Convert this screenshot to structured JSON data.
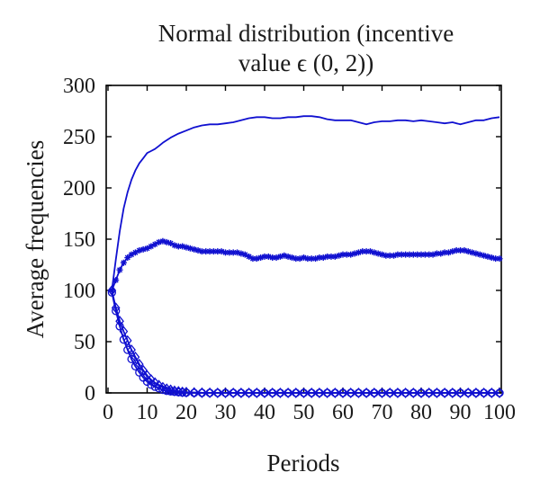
{
  "chart_data": {
    "type": "line",
    "title_line1": "Normal distribution (incentive",
    "title_line2": "value ϵ (0, 2))",
    "xlabel": "Periods",
    "ylabel": "Average frequencies",
    "xlim": [
      0,
      100
    ],
    "ylim": [
      0,
      300
    ],
    "xticks": [
      0,
      10,
      20,
      30,
      40,
      50,
      60,
      70,
      80,
      90,
      100
    ],
    "yticks": [
      0,
      50,
      100,
      150,
      200,
      250,
      300
    ],
    "grid": false,
    "legend": "none",
    "color": "#1010d0",
    "series": [
      {
        "marker": "none",
        "points": [
          [
            1,
            100
          ],
          [
            2,
            130
          ],
          [
            3,
            158
          ],
          [
            4,
            180
          ],
          [
            5,
            196
          ],
          [
            6,
            208
          ],
          [
            7,
            217
          ],
          [
            8,
            224
          ],
          [
            9,
            229
          ],
          [
            10,
            234
          ],
          [
            11,
            236
          ],
          [
            12,
            238
          ],
          [
            13,
            241
          ],
          [
            14,
            244
          ],
          [
            16,
            249
          ],
          [
            18,
            253
          ],
          [
            20,
            256
          ],
          [
            22,
            259
          ],
          [
            24,
            261
          ],
          [
            26,
            262
          ],
          [
            28,
            262
          ],
          [
            30,
            263
          ],
          [
            32,
            264
          ],
          [
            34,
            266
          ],
          [
            36,
            268
          ],
          [
            38,
            269
          ],
          [
            40,
            269
          ],
          [
            42,
            268
          ],
          [
            44,
            268
          ],
          [
            46,
            269
          ],
          [
            48,
            269
          ],
          [
            50,
            270
          ],
          [
            52,
            270
          ],
          [
            54,
            269
          ],
          [
            56,
            267
          ],
          [
            58,
            266
          ],
          [
            60,
            266
          ],
          [
            62,
            266
          ],
          [
            64,
            264
          ],
          [
            66,
            262
          ],
          [
            68,
            264
          ],
          [
            70,
            265
          ],
          [
            72,
            265
          ],
          [
            74,
            266
          ],
          [
            76,
            266
          ],
          [
            78,
            265
          ],
          [
            80,
            266
          ],
          [
            82,
            265
          ],
          [
            84,
            264
          ],
          [
            86,
            263
          ],
          [
            88,
            264
          ],
          [
            90,
            262
          ],
          [
            92,
            264
          ],
          [
            94,
            266
          ],
          [
            96,
            266
          ],
          [
            98,
            268
          ],
          [
            100,
            269
          ]
        ]
      },
      {
        "marker": "star",
        "points": [
          [
            1,
            100
          ],
          [
            2,
            110
          ],
          [
            3,
            120
          ],
          [
            4,
            127
          ],
          [
            5,
            132
          ],
          [
            6,
            135
          ],
          [
            7,
            137
          ],
          [
            8,
            139
          ],
          [
            9,
            140
          ],
          [
            10,
            141
          ],
          [
            11,
            143
          ],
          [
            12,
            145
          ],
          [
            13,
            147
          ],
          [
            14,
            148
          ],
          [
            15,
            147
          ],
          [
            16,
            146
          ],
          [
            17,
            144
          ],
          [
            18,
            143
          ],
          [
            19,
            143
          ],
          [
            20,
            142
          ],
          [
            21,
            141
          ],
          [
            22,
            140
          ],
          [
            23,
            139
          ],
          [
            24,
            138
          ],
          [
            25,
            138
          ],
          [
            26,
            138
          ],
          [
            27,
            138
          ],
          [
            28,
            138
          ],
          [
            29,
            138
          ],
          [
            30,
            137
          ],
          [
            31,
            137
          ],
          [
            32,
            137
          ],
          [
            33,
            137
          ],
          [
            34,
            136
          ],
          [
            35,
            135
          ],
          [
            36,
            133
          ],
          [
            37,
            131
          ],
          [
            38,
            131
          ],
          [
            39,
            132
          ],
          [
            40,
            133
          ],
          [
            41,
            133
          ],
          [
            42,
            132
          ],
          [
            43,
            132
          ],
          [
            44,
            133
          ],
          [
            45,
            134
          ],
          [
            46,
            133
          ],
          [
            47,
            132
          ],
          [
            48,
            131
          ],
          [
            49,
            131
          ],
          [
            50,
            132
          ],
          [
            51,
            131
          ],
          [
            52,
            131
          ],
          [
            53,
            131
          ],
          [
            54,
            132
          ],
          [
            55,
            132
          ],
          [
            56,
            133
          ],
          [
            57,
            133
          ],
          [
            58,
            133
          ],
          [
            59,
            134
          ],
          [
            60,
            135
          ],
          [
            61,
            135
          ],
          [
            62,
            135
          ],
          [
            63,
            136
          ],
          [
            64,
            137
          ],
          [
            65,
            138
          ],
          [
            66,
            138
          ],
          [
            67,
            138
          ],
          [
            68,
            137
          ],
          [
            69,
            136
          ],
          [
            70,
            135
          ],
          [
            71,
            134
          ],
          [
            72,
            134
          ],
          [
            73,
            134
          ],
          [
            74,
            135
          ],
          [
            75,
            135
          ],
          [
            76,
            135
          ],
          [
            77,
            135
          ],
          [
            78,
            135
          ],
          [
            79,
            135
          ],
          [
            80,
            135
          ],
          [
            81,
            135
          ],
          [
            82,
            135
          ],
          [
            83,
            135
          ],
          [
            84,
            136
          ],
          [
            85,
            136
          ],
          [
            86,
            137
          ],
          [
            87,
            137
          ],
          [
            88,
            138
          ],
          [
            89,
            139
          ],
          [
            90,
            139
          ],
          [
            91,
            139
          ],
          [
            92,
            138
          ],
          [
            93,
            137
          ],
          [
            94,
            136
          ],
          [
            95,
            135
          ],
          [
            96,
            134
          ],
          [
            97,
            133
          ],
          [
            98,
            132
          ],
          [
            99,
            131
          ],
          [
            100,
            131
          ]
        ]
      },
      {
        "marker": "diamond",
        "points": [
          [
            1,
            100
          ],
          [
            2,
            83
          ],
          [
            3,
            70
          ],
          [
            4,
            60
          ],
          [
            5,
            51
          ],
          [
            6,
            42
          ],
          [
            7,
            35
          ],
          [
            8,
            28
          ],
          [
            9,
            22
          ],
          [
            10,
            17
          ],
          [
            11,
            13
          ],
          [
            12,
            10
          ],
          [
            13,
            7.5
          ],
          [
            14,
            5.5
          ],
          [
            15,
            4
          ],
          [
            16,
            3
          ],
          [
            17,
            2
          ],
          [
            18,
            1.5
          ],
          [
            19,
            1
          ],
          [
            20,
            0.7
          ],
          [
            22,
            0.4
          ],
          [
            24,
            0.2
          ],
          [
            26,
            0.1
          ],
          [
            28,
            0
          ],
          [
            30,
            0
          ],
          [
            32,
            0
          ],
          [
            34,
            0
          ],
          [
            36,
            0
          ],
          [
            38,
            0
          ],
          [
            40,
            0
          ],
          [
            42,
            0
          ],
          [
            44,
            0
          ],
          [
            46,
            0
          ],
          [
            48,
            0
          ],
          [
            50,
            0
          ],
          [
            52,
            0
          ],
          [
            54,
            0
          ],
          [
            56,
            0
          ],
          [
            58,
            0
          ],
          [
            60,
            0
          ],
          [
            62,
            0
          ],
          [
            64,
            0
          ],
          [
            66,
            0
          ],
          [
            68,
            0
          ],
          [
            70,
            0
          ],
          [
            72,
            0
          ],
          [
            74,
            0
          ],
          [
            76,
            0
          ],
          [
            78,
            0
          ],
          [
            80,
            0
          ],
          [
            82,
            0
          ],
          [
            84,
            0
          ],
          [
            86,
            0
          ],
          [
            88,
            0
          ],
          [
            90,
            0
          ],
          [
            92,
            0
          ],
          [
            94,
            0
          ],
          [
            96,
            0
          ],
          [
            98,
            0
          ],
          [
            100,
            0
          ]
        ]
      },
      {
        "marker": "circle",
        "points": [
          [
            1,
            98
          ],
          [
            2,
            80
          ],
          [
            3,
            65
          ],
          [
            4,
            52
          ],
          [
            5,
            42
          ],
          [
            6,
            33
          ],
          [
            7,
            26
          ],
          [
            8,
            20
          ],
          [
            9,
            15
          ],
          [
            10,
            11
          ],
          [
            11,
            8
          ],
          [
            12,
            6
          ],
          [
            13,
            4.5
          ],
          [
            14,
            3
          ],
          [
            15,
            2
          ],
          [
            16,
            1.5
          ],
          [
            17,
            1
          ],
          [
            18,
            0.7
          ],
          [
            19,
            0.4
          ],
          [
            20,
            0.2
          ],
          [
            22,
            0
          ],
          [
            24,
            0
          ],
          [
            26,
            0
          ],
          [
            28,
            0
          ],
          [
            30,
            0
          ],
          [
            32,
            0
          ],
          [
            34,
            0
          ],
          [
            36,
            0
          ],
          [
            38,
            0
          ],
          [
            40,
            0
          ],
          [
            42,
            0
          ],
          [
            44,
            0
          ],
          [
            46,
            0
          ],
          [
            48,
            0
          ],
          [
            50,
            0
          ],
          [
            52,
            0
          ],
          [
            54,
            0
          ],
          [
            56,
            0
          ],
          [
            58,
            0
          ],
          [
            60,
            0
          ],
          [
            62,
            0
          ],
          [
            64,
            0
          ],
          [
            66,
            0
          ],
          [
            68,
            0
          ],
          [
            70,
            0
          ],
          [
            72,
            0
          ],
          [
            74,
            0
          ],
          [
            76,
            0
          ],
          [
            78,
            0
          ],
          [
            80,
            0
          ],
          [
            82,
            0
          ],
          [
            84,
            0
          ],
          [
            86,
            0
          ],
          [
            88,
            0
          ],
          [
            90,
            0
          ],
          [
            92,
            0
          ],
          [
            94,
            0
          ],
          [
            96,
            0
          ],
          [
            98,
            0
          ],
          [
            100,
            0
          ]
        ]
      }
    ]
  }
}
